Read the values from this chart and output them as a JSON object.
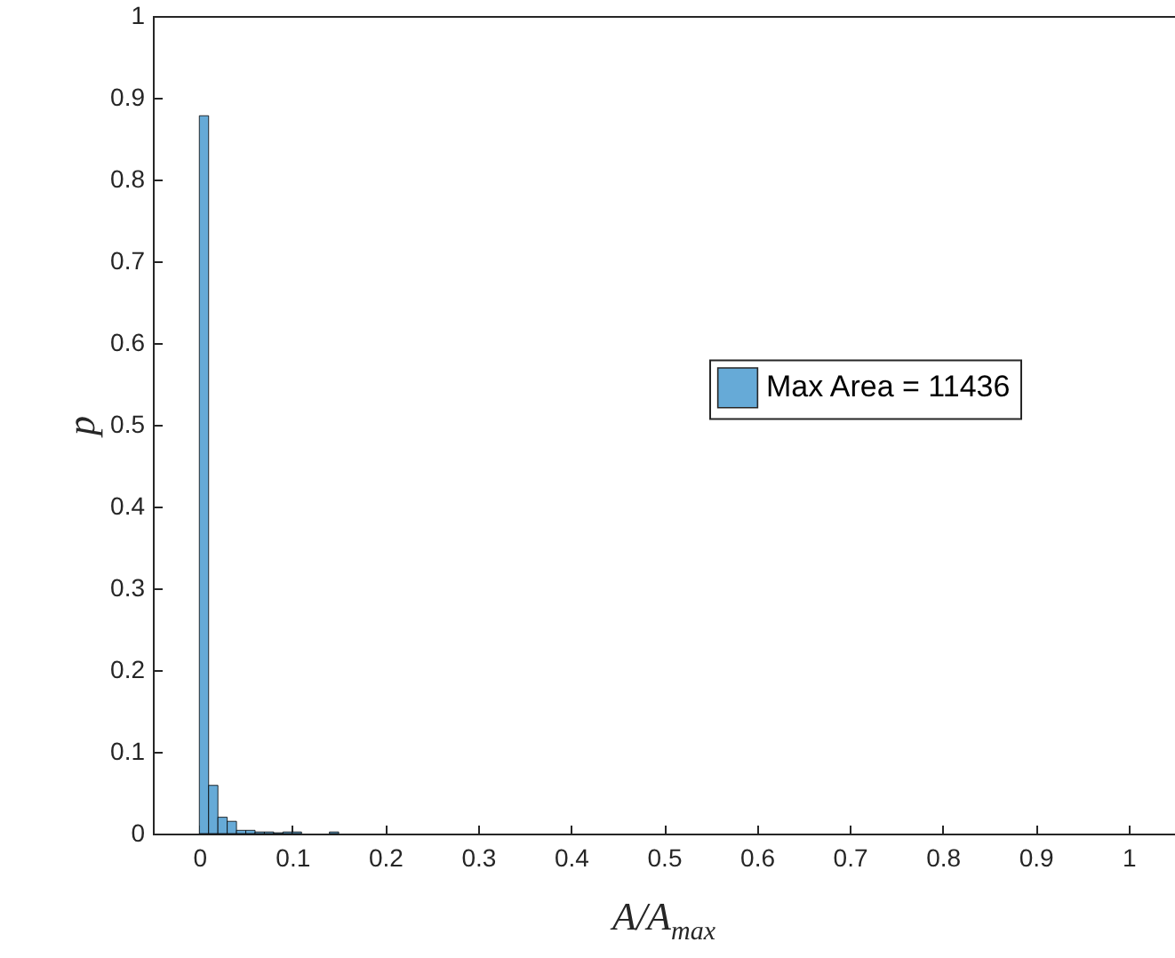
{
  "chart_data": {
    "type": "histogram",
    "xlabel": "A/A$_{max}$",
    "ylabel": "p",
    "bins": [
      0,
      0.01,
      0.02,
      0.03,
      0.04,
      0.05,
      0.06,
      0.07,
      0.08,
      0.09,
      0.1,
      0.11,
      0.12,
      0.13,
      0.14,
      0.15
    ],
    "series": [
      {
        "name": "Max Area = 11436",
        "color": "#66aad7",
        "values": [
          0.878,
          0.059,
          0.02,
          0.015,
          0.004,
          0.004,
          0.002,
          0.002,
          0.001,
          0.002,
          0.002,
          0,
          0,
          0,
          0.002
        ]
      }
    ],
    "xlim": [
      -0.05,
      1.05
    ],
    "xticks": [
      0,
      0.1,
      0.2,
      0.3,
      0.4,
      0.5,
      0.6,
      0.7,
      0.8,
      0.9,
      1
    ],
    "ylim": [
      0,
      1
    ],
    "yticks": [
      0,
      0.1,
      0.2,
      0.3,
      0.4,
      0.5,
      0.6,
      0.7,
      0.8,
      0.9,
      1
    ],
    "grid": false,
    "legend": "right"
  }
}
